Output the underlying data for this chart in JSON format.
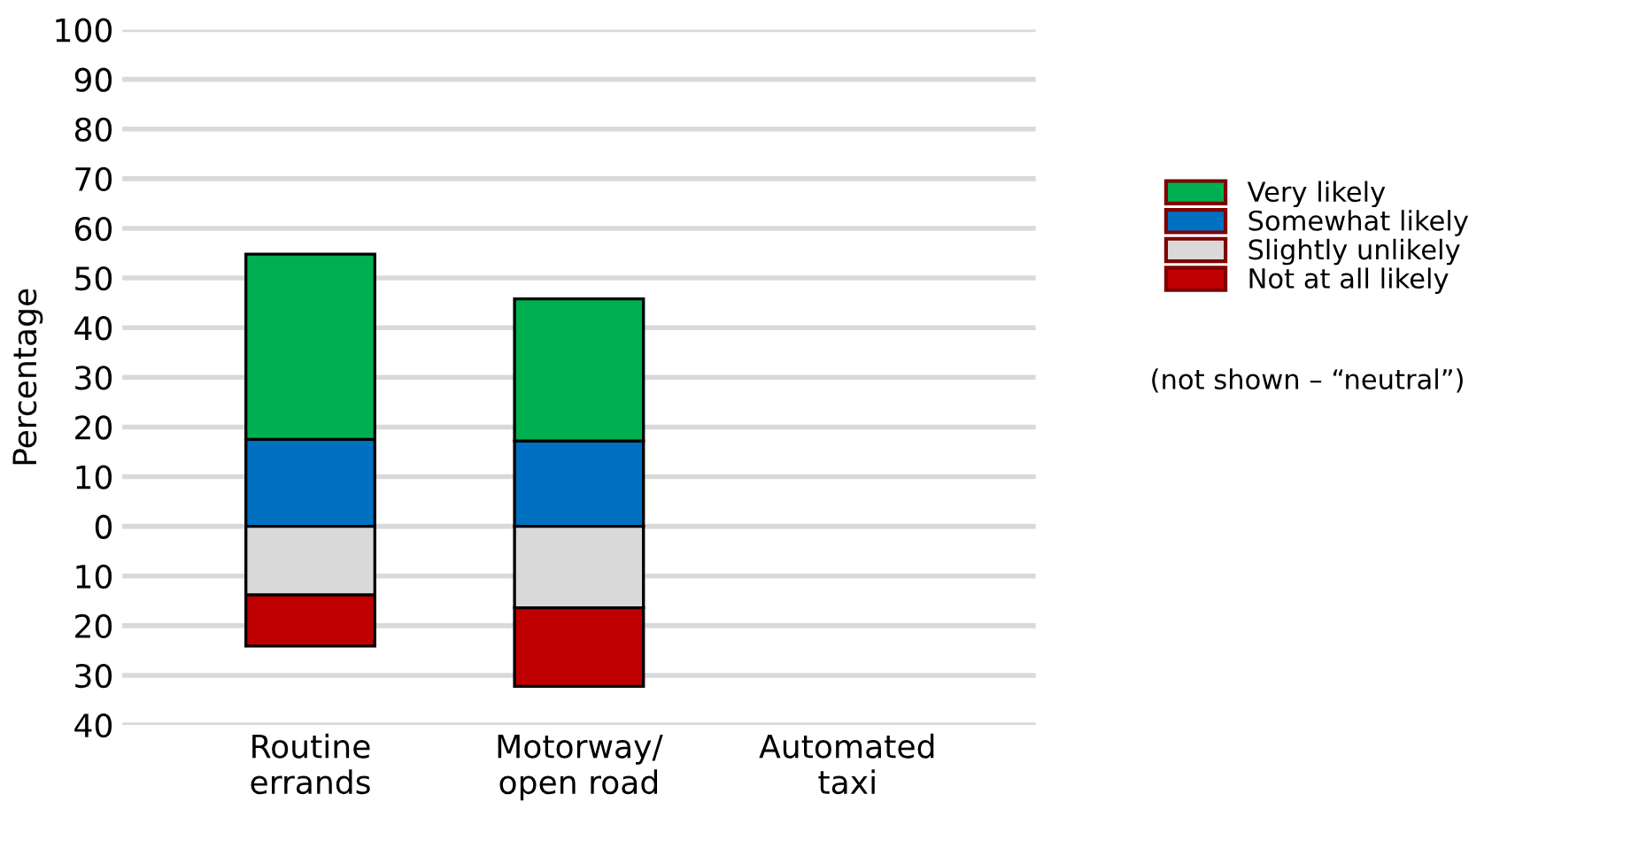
{
  "chart_data": {
    "type": "bar",
    "stacked": true,
    "ylabel": "Percentage",
    "categories": [
      "Routine\nerrands",
      "Motorway/\nopen road",
      "Automated\ntaxi"
    ],
    "series": [
      {
        "name": "Somewhat likely",
        "color": "#0070c0",
        "values": [
          17.5,
          17.2,
          null
        ]
      },
      {
        "name": "Very likely",
        "color": "#00b050",
        "values": [
          37.3,
          28.6,
          null
        ]
      },
      {
        "name": "Slightly unlikely",
        "color": "#d9d9d9",
        "values": [
          -13.8,
          -16.4,
          null
        ]
      },
      {
        "name": "Not at all likely",
        "color": "#c00000",
        "values": [
          -10.3,
          -15.8,
          null
        ]
      }
    ],
    "ylim": [
      -40,
      100
    ],
    "yticks": [
      {
        "value": -40,
        "label": "40"
      },
      {
        "value": -30,
        "label": "30"
      },
      {
        "value": -20,
        "label": "20"
      },
      {
        "value": -10,
        "label": "10"
      },
      0,
      10,
      20,
      30,
      40,
      50,
      60,
      70,
      80,
      90,
      100
    ],
    "grid": "y",
    "legend": "right",
    "annotations": [
      "(not shown – “neutral”)"
    ]
  }
}
